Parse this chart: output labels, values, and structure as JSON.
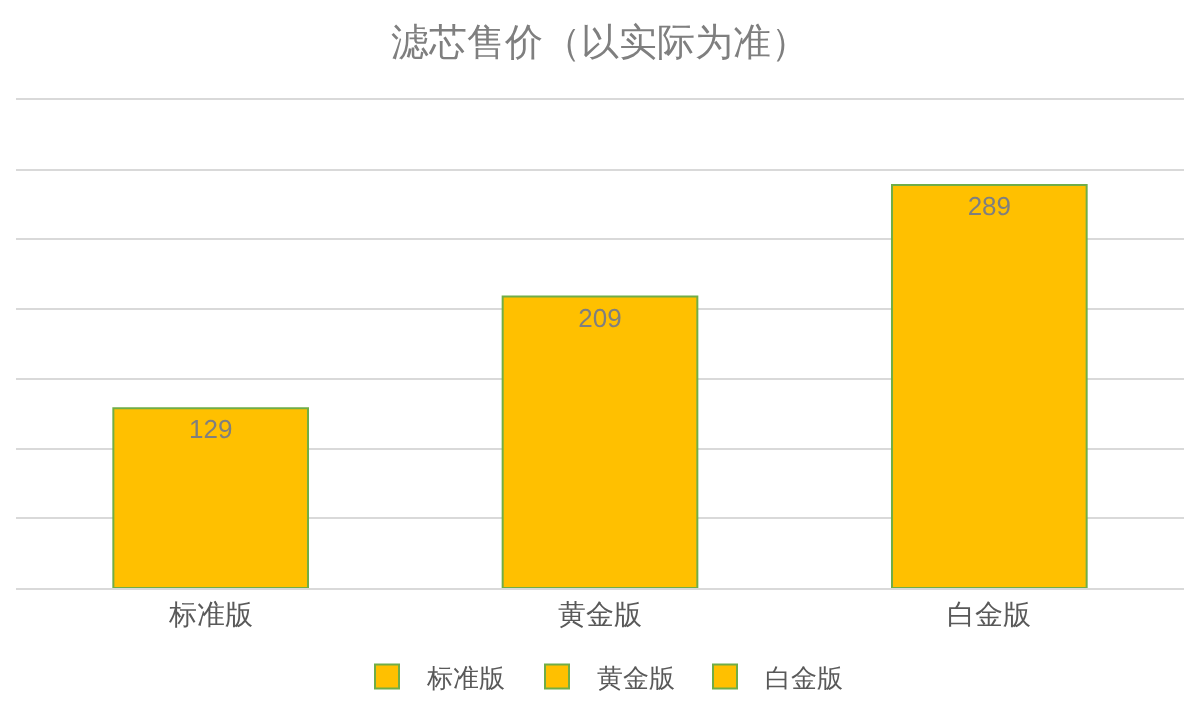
{
  "chart_data": {
    "type": "bar",
    "title": "滤芯售价（以实际为准）",
    "categories": [
      "标准版",
      "黄金版",
      "白金版"
    ],
    "series": [
      {
        "name": "标准版",
        "color": "#ffc000",
        "values": [
          129,
          null,
          null
        ]
      },
      {
        "name": "黄金版",
        "color": "#ffc000",
        "values": [
          null,
          209,
          null
        ]
      },
      {
        "name": "白金版",
        "color": "#ffc000",
        "values": [
          null,
          null,
          289
        ]
      }
    ],
    "ylim": [
      0,
      350
    ],
    "yticks": [
      {
        "value": 0,
        "label": null
      },
      {
        "value": 50,
        "label": null
      },
      {
        "value": 100,
        "label": null
      },
      {
        "value": 150,
        "label": null
      },
      {
        "value": 200,
        "label": null
      },
      {
        "value": 250,
        "label": null
      },
      {
        "value": 300,
        "label": null
      },
      {
        "value": 350,
        "label": null
      }
    ],
    "grid": "y",
    "legend": "bottom",
    "tick_labels": "x",
    "data_labels": true
  }
}
